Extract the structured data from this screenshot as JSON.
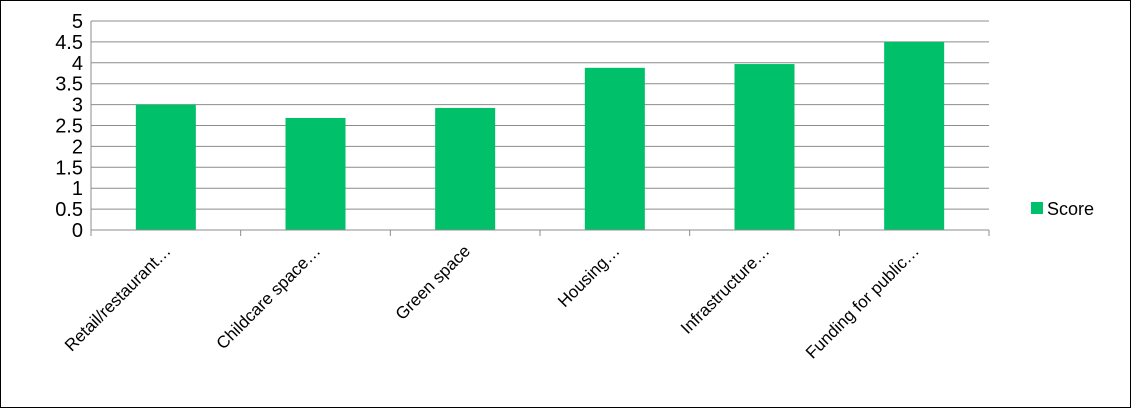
{
  "chart_data": {
    "type": "bar",
    "categories": [
      "Retail/restaurant…",
      "Childcare space…",
      "Green space",
      "Housing…",
      "Infrastructure…",
      "Funding for public…"
    ],
    "series": [
      {
        "name": "Score",
        "values": [
          3.0,
          2.68,
          2.92,
          3.88,
          3.97,
          4.5
        ],
        "color": "#00c06a"
      }
    ],
    "yticks": [
      "0",
      "0.5",
      "1",
      "1.5",
      "2",
      "2.5",
      "3",
      "3.5",
      "4",
      "4.5",
      "5"
    ],
    "ylim": [
      0,
      5
    ],
    "grid": true,
    "legend_position": "right"
  }
}
